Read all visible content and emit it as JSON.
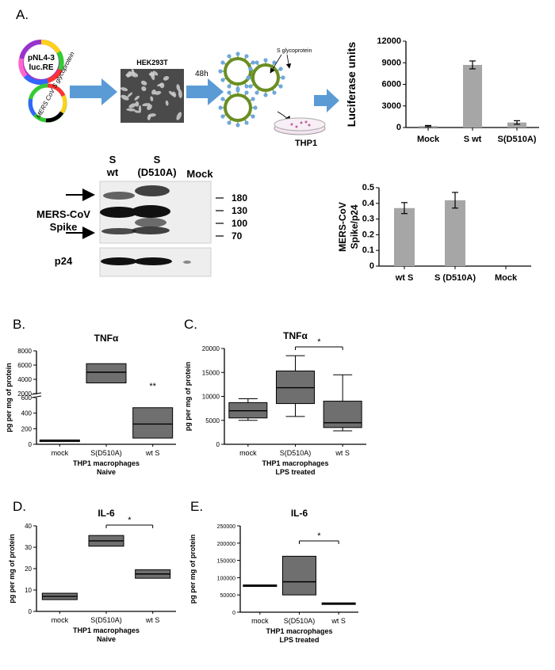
{
  "panel_letters": {
    "a": "A.",
    "b": "B.",
    "c": "C.",
    "d": "D.",
    "e": "E."
  },
  "schematic": {
    "plasmid1_line1": "pNL4-3",
    "plasmid1_line2": "luc.RE",
    "plasmid2_label": "MERS CoV S glycoprotein",
    "cell_label": "HEK293T",
    "time_label": "48h",
    "glyco_label": "S glycoprotein",
    "dish_label": "THP1"
  },
  "western": {
    "lane_s_wt_1": "S",
    "lane_s_wt_2": "wt",
    "lane_s_mut_1": "S",
    "lane_s_mut_2": "(D510A)",
    "lane_mock": "Mock",
    "spike_label_1": "MERS-CoV",
    "spike_label_2": "Spike",
    "p24_label": "p24",
    "markers": [
      "180",
      "130",
      "100",
      "70"
    ]
  },
  "colors": {
    "bar": "#a6a6a6",
    "box": "#6f6f6f",
    "arrow": "#5b9bd5"
  },
  "chart_data": [
    {
      "id": "luciferase",
      "type": "bar",
      "categories": [
        "Mock",
        "S wt",
        "S(D510A)"
      ],
      "values": [
        200,
        8700,
        700
      ],
      "errors": [
        80,
        550,
        250
      ],
      "ylabel": "Luciferase units",
      "ylim": [
        0,
        12000
      ],
      "yticks": [
        "0",
        "3000",
        "6000",
        "9000",
        "12000"
      ]
    },
    {
      "id": "spike_p24",
      "type": "bar",
      "categories": [
        "wt S",
        "S (D510A)",
        "Mock"
      ],
      "values": [
        0.37,
        0.42,
        0
      ],
      "errors": [
        0.035,
        0.05,
        0
      ],
      "ylabel": "MERS-CoV Spike/p24",
      "ylim": [
        0,
        0.5
      ],
      "yticks": [
        "0",
        "0.1",
        "0.2",
        "0.3",
        "0.4",
        "0.5"
      ]
    },
    {
      "id": "tnf_naive",
      "type": "box",
      "title": "TNFα",
      "categories": [
        "mock",
        "S(D510A)",
        "wt S"
      ],
      "xlabel": "THP1 macrophages",
      "xlabel2": "Naive",
      "ylabel": "pg per mg of protein",
      "yticks": [
        "0",
        "200",
        "400",
        "600",
        "2000",
        "4000",
        "6000",
        "8000"
      ],
      "annotations": [
        "**"
      ],
      "boxes": [
        {
          "q1": 45,
          "median": 50,
          "q3": 55
        },
        {
          "q1": 3500,
          "median": 5000,
          "q3": 6200
        },
        {
          "q1": 80,
          "median": 260,
          "q3": 470
        }
      ]
    },
    {
      "id": "tnf_lps",
      "type": "box",
      "title": "TNFα",
      "categories": [
        "mock",
        "S(D510A)",
        "wt S"
      ],
      "xlabel": "THP1 macrophages",
      "xlabel2": "LPS treated",
      "ylabel": "pg per mg of protein",
      "ylim": [
        0,
        20000
      ],
      "yticks": [
        "0",
        "5000",
        "10000",
        "15000",
        "20000"
      ],
      "annotations": [
        "*"
      ],
      "boxes": [
        {
          "min": 5000,
          "q1": 5500,
          "median": 7000,
          "q3": 8700,
          "max": 9500
        },
        {
          "min": 5800,
          "q1": 8500,
          "median": 11800,
          "q3": 15300,
          "max": 18500
        },
        {
          "min": 2800,
          "q1": 3500,
          "median": 4500,
          "q3": 9000,
          "max": 14500
        }
      ]
    },
    {
      "id": "il6_naive",
      "type": "box",
      "title": "IL-6",
      "categories": [
        "mock",
        "S(D510A)",
        "wt S"
      ],
      "xlabel": "THP1 macrophages",
      "xlabel2": "Naive",
      "ylabel": "pg per mg of protein",
      "ylim": [
        0,
        40
      ],
      "yticks": [
        "0",
        "10",
        "20",
        "30",
        "40"
      ],
      "annotations": [
        "*"
      ],
      "boxes": [
        {
          "q1": 5.5,
          "median": 7,
          "q3": 8.5
        },
        {
          "q1": 30.5,
          "median": 33,
          "q3": 35.5
        },
        {
          "q1": 15.5,
          "median": 17.5,
          "q3": 19.5
        }
      ]
    },
    {
      "id": "il6_lps",
      "type": "box",
      "title": "IL-6",
      "categories": [
        "mock",
        "S(D510A)",
        "wt S"
      ],
      "xlabel": "THP1 macrophages",
      "xlabel2": "LPS treated",
      "ylabel": "pg per mg of protein",
      "ylim": [
        0,
        250000
      ],
      "yticks": [
        "0",
        "50000",
        "100000",
        "150000",
        "200000",
        "250000"
      ],
      "annotations": [
        "*"
      ],
      "boxes": [
        {
          "q1": 76000,
          "median": 77500,
          "q3": 79000
        },
        {
          "q1": 50000,
          "median": 88000,
          "q3": 162000
        },
        {
          "q1": 23000,
          "median": 25000,
          "q3": 27000
        }
      ]
    }
  ]
}
